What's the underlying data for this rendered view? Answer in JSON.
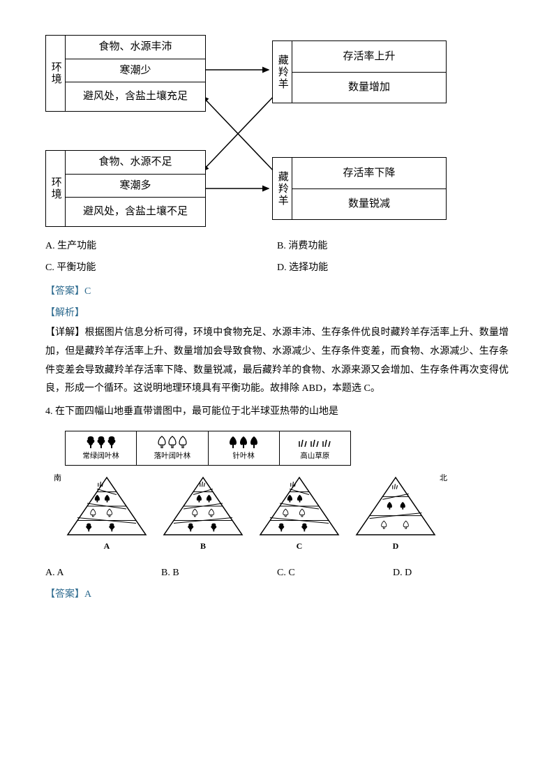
{
  "diagram": {
    "box1": {
      "side": "环境",
      "rows": [
        "食物、水源丰沛",
        "寒潮少",
        "避风处，含盐土壤充足"
      ]
    },
    "box2": {
      "side": "藏羚羊",
      "rows": [
        "存活率上升",
        "数量增加"
      ]
    },
    "box3": {
      "side": "环境",
      "rows": [
        "食物、水源不足",
        "寒潮多",
        "避风处，含盐土壤不足"
      ]
    },
    "box4": {
      "side": "藏羚羊",
      "rows": [
        "存活率下降",
        "数量锐减"
      ]
    },
    "colors": {
      "border": "#000000",
      "bg": "#ffffff"
    },
    "fontsize": 15
  },
  "q3_options": {
    "A": "A. 生产功能",
    "B": "B. 消费功能",
    "C": "C. 平衡功能",
    "D": "D. 选择功能"
  },
  "q3_answer_label": "【答案】",
  "q3_answer": "C",
  "q3_analysis_label": "【解析】",
  "q3_detail_label": "【详解】",
  "q3_analysis": "根据图片信息分析可得，环境中食物充足、水源丰沛、生存条件优良时藏羚羊存活率上升、数量增加，但是藏羚羊存活率上升、数量增加会导致食物、水源减少、生存条件变差，而食物、水源减少、生存条件变差会导致藏羚羊存活率下降、数量锐减，最后藏羚羊的食物、水源来源又会增加、生存条件再次变得优良，形成一个循环。这说明地理环境具有平衡功能。故排除 ABD，本题选 C。",
  "q4_text": "4. 在下面四幅山地垂直带谱图中，最可能位于北半球亚热带的山地是",
  "legend": [
    {
      "label": "常绿阔叶林",
      "icon": "club-filled"
    },
    {
      "label": "落叶阔叶林",
      "icon": "spade-outline"
    },
    {
      "label": "针叶林",
      "icon": "spade-filled"
    },
    {
      "label": "高山草原",
      "icon": "grass"
    }
  ],
  "triangles": {
    "south_label": "南",
    "north_label": "北",
    "items": [
      {
        "label": "A",
        "bands": [
          "grass",
          "spade-filled",
          "spade-outline",
          "club-filled"
        ],
        "shiftLeft": true
      },
      {
        "label": "B",
        "bands": [
          "grass",
          "spade-filled",
          "spade-outline",
          "club-filled"
        ],
        "shiftLeft": false
      },
      {
        "label": "C",
        "bands": [
          "grass",
          "spade-filled",
          "spade-outline",
          "club-filled"
        ],
        "shiftLeft": true
      },
      {
        "label": "D",
        "bands": [
          "grass",
          "spade-filled",
          "spade-outline"
        ],
        "shiftLeft": false
      }
    ]
  },
  "q4_options": {
    "A": "A. A",
    "B": "B. B",
    "C": "C. C",
    "D": "D. D"
  },
  "q4_answer_label": "【答案】",
  "q4_answer": "A",
  "colors": {
    "answer": "#2e6b8f",
    "text": "#000000"
  }
}
